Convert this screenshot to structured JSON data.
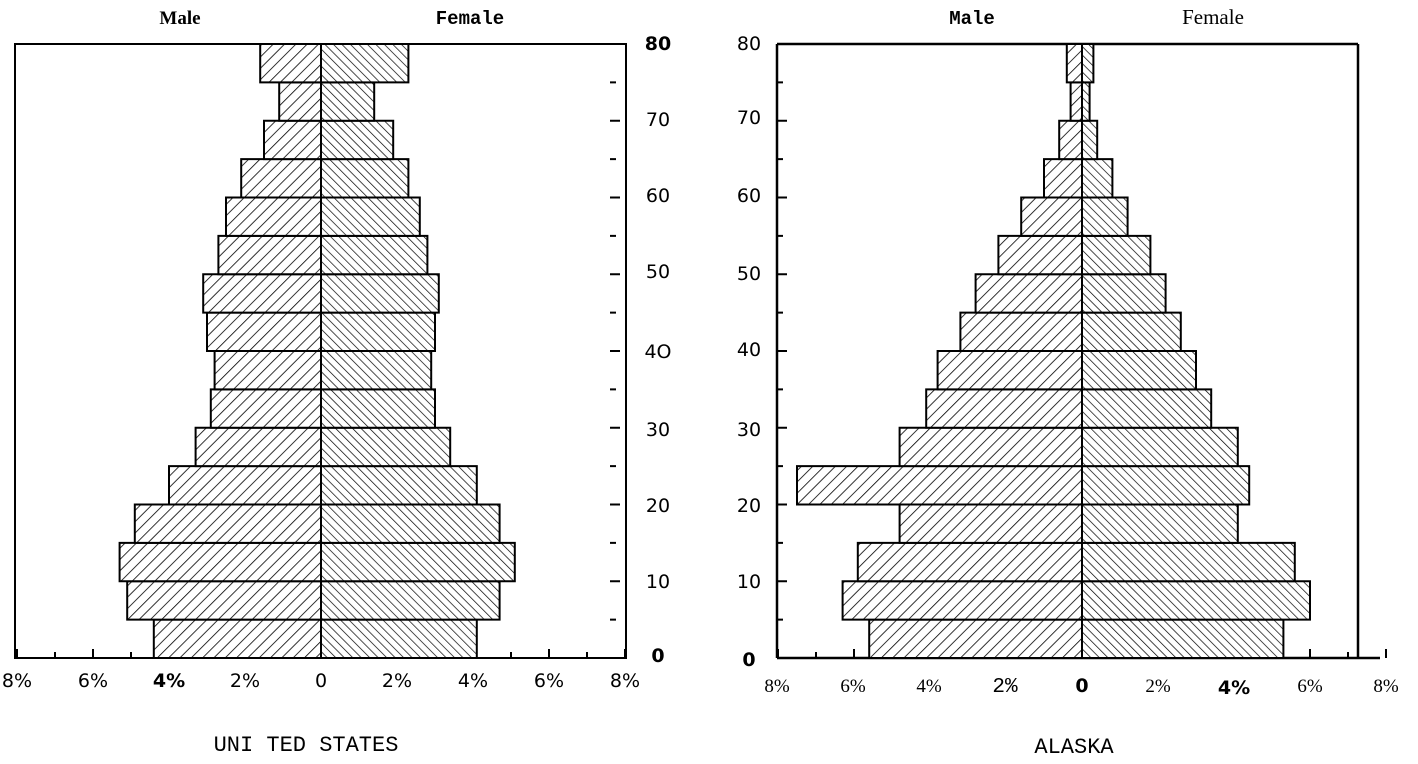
{
  "colors": {
    "ink": "#000000",
    "background": "#ffffff"
  },
  "chart_data": [
    {
      "type": "bar",
      "subtype": "population-pyramid",
      "caption": "UNI TED STATES",
      "left_label": "Male",
      "right_label": "Female",
      "y_ticks": [
        "80",
        "70",
        "60",
        "50",
        "4O",
        "30",
        "20",
        "10",
        "0"
      ],
      "x_ticks": [
        "8%",
        "6%",
        "4%",
        "2%",
        "0",
        "2%",
        "4%",
        "6%",
        "8%"
      ],
      "xlim": [
        -8,
        8
      ],
      "age_band_lower": [
        0,
        5,
        10,
        15,
        20,
        25,
        30,
        35,
        40,
        45,
        50,
        55,
        60,
        65,
        70,
        75
      ],
      "series": [
        {
          "name": "Male",
          "values": [
            4.4,
            5.1,
            5.3,
            4.9,
            4.0,
            3.3,
            2.9,
            2.8,
            3.0,
            3.1,
            2.7,
            2.5,
            2.1,
            1.5,
            1.1,
            1.6
          ]
        },
        {
          "name": "Female",
          "values": [
            4.1,
            4.7,
            5.1,
            4.7,
            4.1,
            3.4,
            3.0,
            2.9,
            3.0,
            3.1,
            2.8,
            2.6,
            2.3,
            1.9,
            1.4,
            2.3
          ]
        }
      ],
      "grid": false
    },
    {
      "type": "bar",
      "subtype": "population-pyramid",
      "caption": "ALASKA",
      "left_label": "Male",
      "right_label": "Female",
      "y_ticks": [
        "80",
        "70",
        "60",
        "50",
        "40",
        "30",
        "20",
        "10",
        "0"
      ],
      "x_ticks": [
        "8%",
        "6%",
        "4%",
        "2%",
        "0",
        "2%",
        "4%",
        "6%",
        "8%"
      ],
      "xlim": [
        -8,
        8
      ],
      "age_band_lower": [
        0,
        5,
        10,
        15,
        20,
        25,
        30,
        35,
        40,
        45,
        50,
        55,
        60,
        65,
        70,
        75
      ],
      "series": [
        {
          "name": "Male",
          "values": [
            5.6,
            6.3,
            5.9,
            4.8,
            7.5,
            4.8,
            4.1,
            3.8,
            3.2,
            2.8,
            2.2,
            1.6,
            1.0,
            0.6,
            0.3,
            0.4
          ]
        },
        {
          "name": "Female",
          "values": [
            5.3,
            6.0,
            5.6,
            4.1,
            4.4,
            4.1,
            3.4,
            3.0,
            2.6,
            2.2,
            1.8,
            1.2,
            0.8,
            0.4,
            0.2,
            0.3
          ]
        }
      ],
      "grid": false
    }
  ]
}
